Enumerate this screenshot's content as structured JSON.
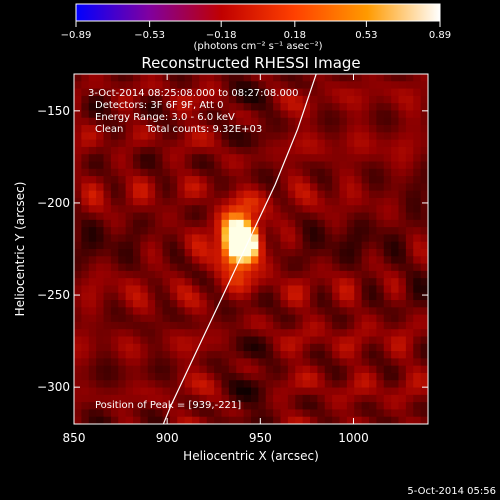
{
  "chart_data": {
    "type": "heatmap",
    "title": "Reconstructed RHESSI Image",
    "xlabel": "Heliocentric X (arcsec)",
    "ylabel": "Heliocentric Y (arcsec)",
    "xlim": [
      850,
      1040
    ],
    "ylim": [
      -320,
      -130
    ],
    "xticks": [
      850,
      900,
      950,
      1000
    ],
    "yticks": [
      -150,
      -200,
      -250,
      -300
    ],
    "x_tick_labels": [
      "850",
      "900",
      "950",
      "1000"
    ],
    "y_tick_labels": [
      "−150",
      "−200",
      "−250",
      "−300"
    ],
    "colorbar": {
      "range": [
        -0.89,
        0.89
      ],
      "ticks": [
        -0.89,
        -0.53,
        -0.18,
        0.18,
        0.53,
        0.89
      ],
      "tick_labels": [
        "−0.89",
        "−0.53",
        "−0.18",
        "0.18",
        "0.53",
        "0.89"
      ],
      "unit_label": "(photons cm⁻² s⁻¹ asec⁻²)",
      "colormap": [
        "#0000ff",
        "#8000a0",
        "#c00000",
        "#ff4000",
        "#ff9a00",
        "#ffffff"
      ]
    },
    "peak": {
      "x": 939,
      "y": -221,
      "value": 0.89
    },
    "limb": {
      "points": [
        [
          980,
          -130
        ],
        [
          970,
          -160
        ],
        [
          958,
          -190
        ],
        [
          944,
          -220
        ],
        [
          930,
          -250
        ],
        [
          916,
          -280
        ],
        [
          902,
          -310
        ],
        [
          898,
          -320
        ]
      ]
    },
    "annotations": {
      "time_range": "3-Oct-2014 08:25:08.000 to 08:27:08.000",
      "detectors": "Detectors: 3F 6F 9F, Att 0",
      "energy_range": "Energy Range: 3.0 - 6.0 keV",
      "clean_label": "Clean",
      "total_counts": "Total counts: 9.32E+03",
      "peak_position": "Position of Peak = [939,-221]"
    },
    "footer_date": "5-Oct-2014 05:56"
  }
}
